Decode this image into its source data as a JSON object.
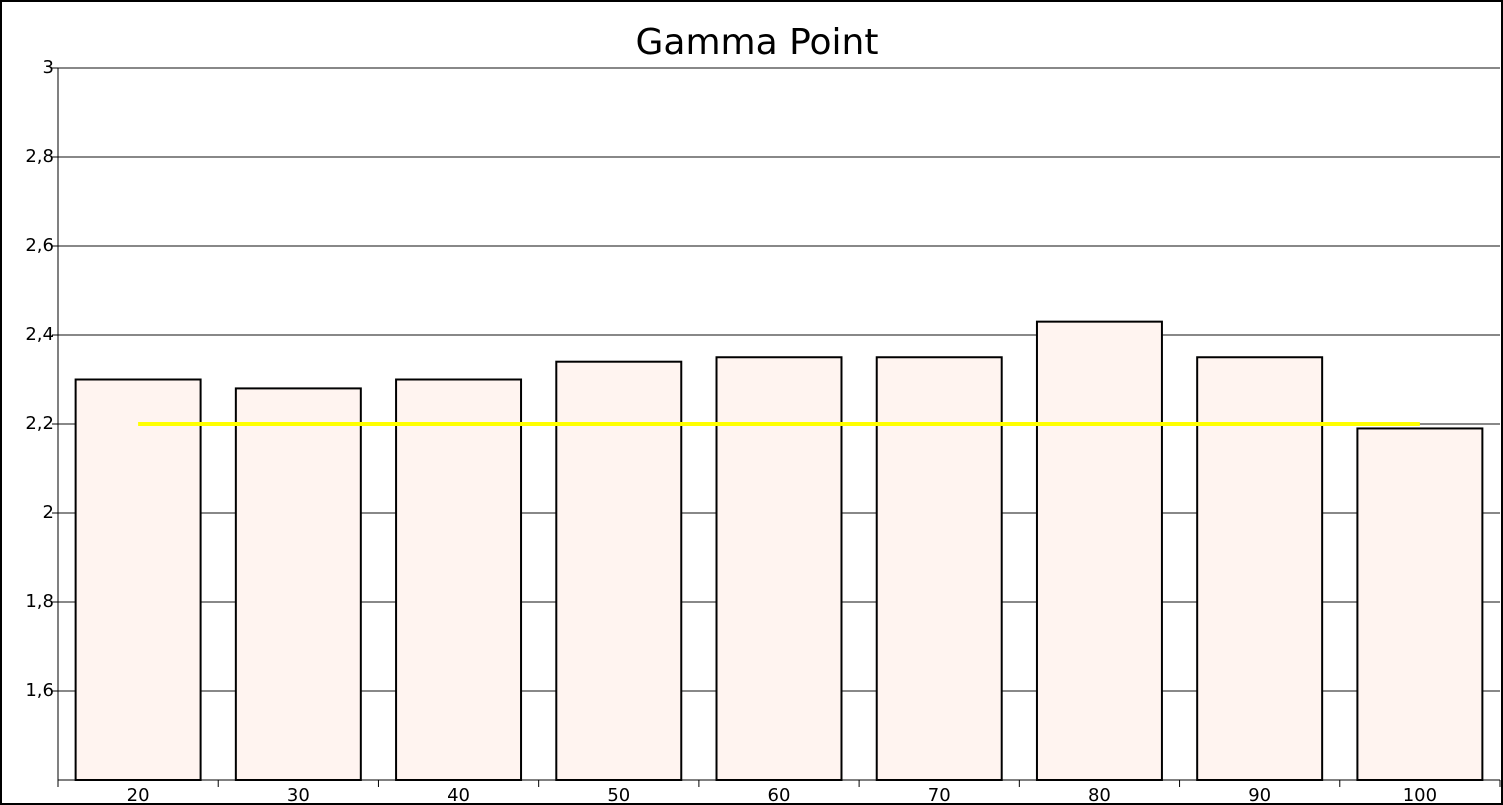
{
  "chart_data": {
    "type": "bar",
    "title": "Gamma Point",
    "categories": [
      "20",
      "30",
      "40",
      "50",
      "60",
      "70",
      "80",
      "90",
      "100"
    ],
    "series": [
      {
        "type": "bar",
        "color": "#fff4f0",
        "values": [
          2.3,
          2.28,
          2.3,
          2.34,
          2.35,
          2.35,
          2.43,
          2.35,
          2.19
        ]
      },
      {
        "type": "line",
        "color": "#ffff00",
        "values": [
          2.2,
          2.2,
          2.2,
          2.2,
          2.2,
          2.2,
          2.2,
          2.2,
          2.2
        ]
      }
    ],
    "ylim": [
      1.4,
      3
    ],
    "yticks": [
      {
        "value": 1.6,
        "label": "1,6"
      },
      {
        "value": 1.8,
        "label": "1,8"
      },
      2,
      {
        "value": 2.2,
        "label": "2,2"
      },
      {
        "value": 2.4,
        "label": "2,4"
      },
      {
        "value": 2.6,
        "label": "2,6"
      },
      {
        "value": 2.8,
        "label": "2,8"
      },
      3
    ],
    "grid": true
  }
}
